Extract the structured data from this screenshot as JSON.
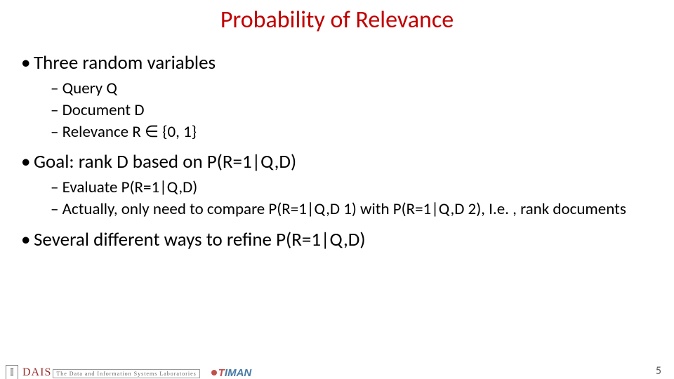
{
  "title": {
    "text": "Probability of Relevance",
    "color": "#c00000",
    "fontsize": 34
  },
  "body_color": "#000000",
  "l1_fontsize": 27,
  "l2_fontsize": 23,
  "bullets": {
    "b1": "Three random variables",
    "b1_subs": {
      "s1": "Query Q",
      "s2": "Document D",
      "s3": "Relevance R ∈ {0, 1}"
    },
    "b2": "Goal: rank D based on P(R=1|Q,D)",
    "b2_subs": {
      "s1": "Evaluate P(R=1|Q,D)",
      "s2": "Actually, only need to compare P(R=1|Q,D 1) with P(R=1|Q,D 2), I.e. , rank documents"
    },
    "b3": "Several different ways to refine P(R=1|Q,D)"
  },
  "page_number": "5",
  "page_number_fontsize": 16,
  "page_number_color": "#595959",
  "footer": {
    "illinois_glyph": "𝕀",
    "dais_text": "DAIS",
    "dais_color": "#9b2d2d",
    "dais_fontsize": 16,
    "dais_box_text": "The Data and Information Systems Laboratories",
    "timan_text": "TIMAN",
    "timan_fontsize": 15,
    "timan_color_t": "#c0504d",
    "timan_color_rest": "#4a7ba6"
  }
}
